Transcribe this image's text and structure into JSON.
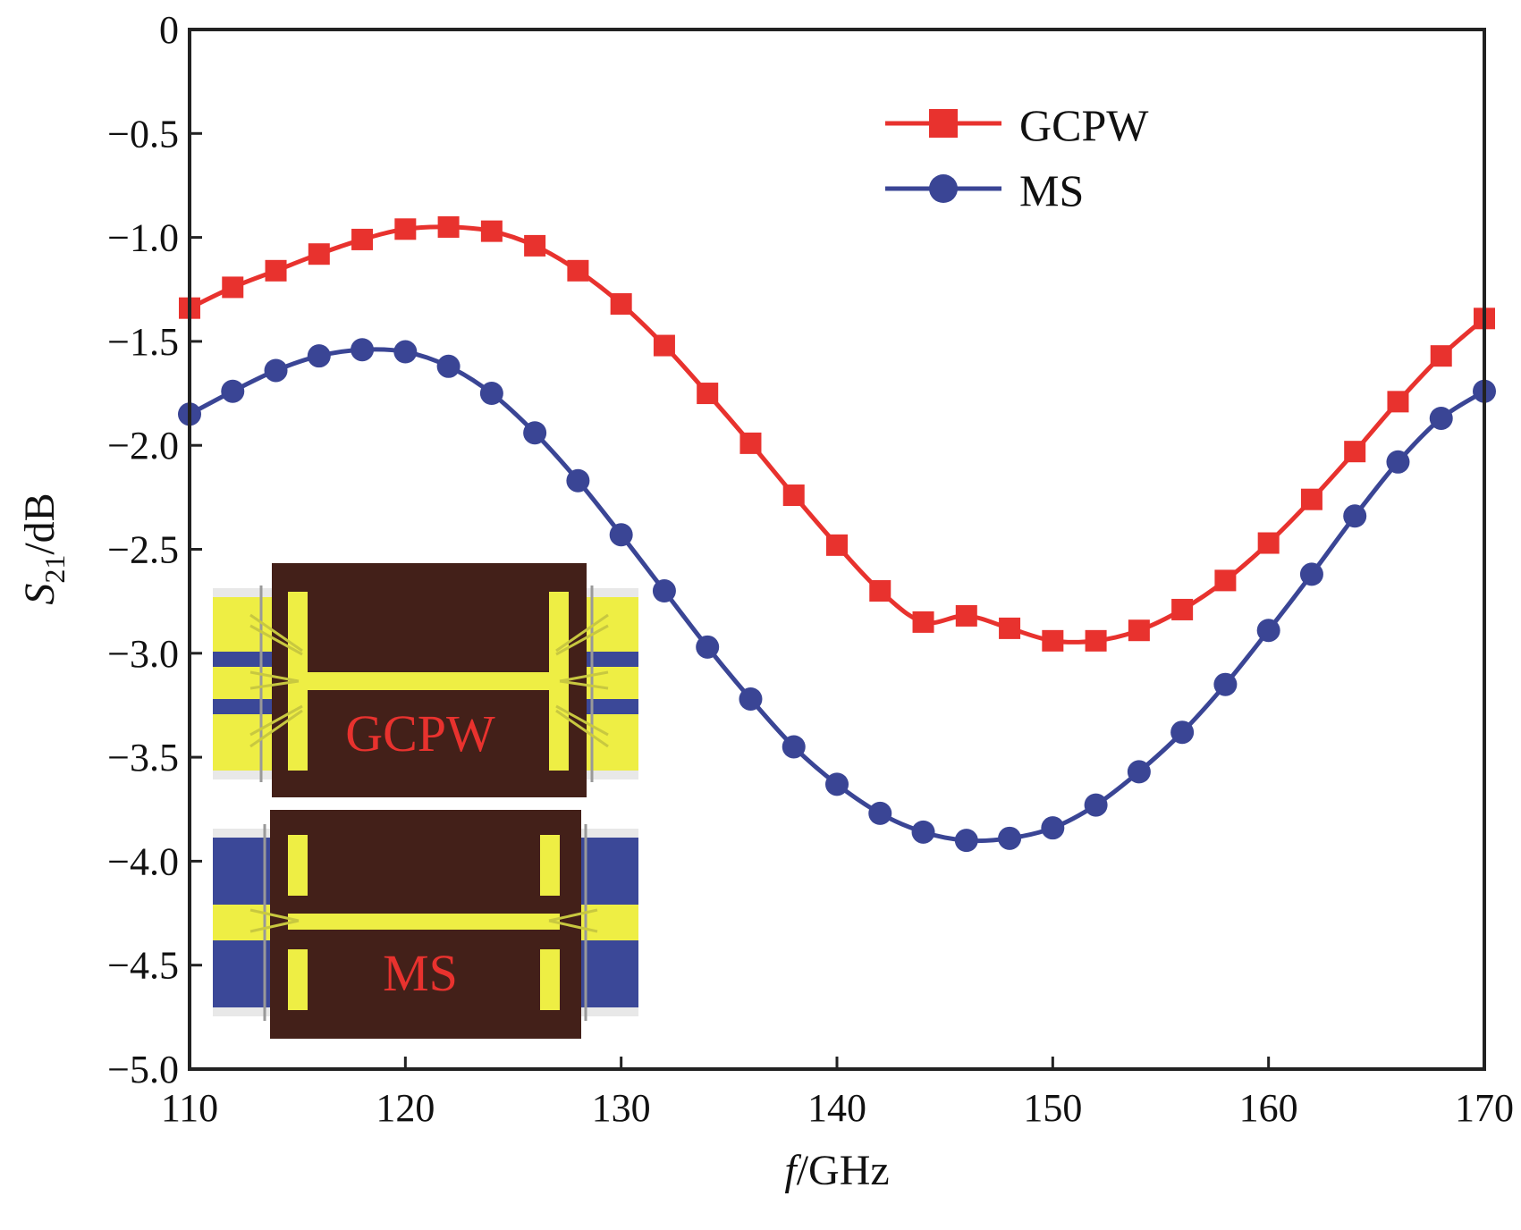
{
  "chart_data": {
    "type": "line",
    "xlabel": {
      "italic": "f",
      "rest": "/GHz"
    },
    "ylabel": {
      "italic": "S",
      "sub": "21",
      "rest": "/dB"
    },
    "xlim": [
      110,
      170
    ],
    "ylim": [
      -5.0,
      0
    ],
    "xticks": [
      "110",
      "120",
      "130",
      "140",
      "150",
      "160",
      "170"
    ],
    "yticks": [
      "0",
      "−0.5",
      "−1.0",
      "−1.5",
      "−2.0",
      "−2.5",
      "−3.0",
      "−3.5",
      "−4.0",
      "−4.5",
      "−5.0"
    ],
    "grid": false,
    "legend_position": "top-right",
    "x": [
      110,
      112,
      114,
      116,
      118,
      120,
      122,
      124,
      126,
      128,
      130,
      132,
      134,
      136,
      138,
      140,
      142,
      144,
      146,
      148,
      150,
      152,
      154,
      156,
      158,
      160,
      162,
      164,
      166,
      168,
      170
    ],
    "series": [
      {
        "name": "GCPW",
        "color": "#e8322e",
        "marker": "square",
        "values": [
          -1.34,
          -1.24,
          -1.16,
          -1.08,
          -1.01,
          -0.96,
          -0.95,
          -0.97,
          -1.04,
          -1.16,
          -1.32,
          -1.52,
          -1.75,
          -1.99,
          -2.24,
          -2.48,
          -2.7,
          -2.85,
          -2.82,
          -2.88,
          -2.94,
          -2.94,
          -2.89,
          -2.79,
          -2.65,
          -2.47,
          -2.26,
          -2.03,
          -1.79,
          -1.57,
          -1.39
        ]
      },
      {
        "name": "MS",
        "color": "#3a4595",
        "marker": "circle",
        "values": [
          -1.85,
          -1.74,
          -1.64,
          -1.57,
          -1.54,
          -1.55,
          -1.62,
          -1.75,
          -1.94,
          -2.17,
          -2.43,
          -2.7,
          -2.97,
          -3.22,
          -3.45,
          -3.63,
          -3.77,
          -3.86,
          -3.9,
          -3.89,
          -3.84,
          -3.73,
          -3.57,
          -3.38,
          -3.15,
          -2.89,
          -2.62,
          -2.34,
          -2.08,
          -1.87,
          -1.74
        ]
      }
    ],
    "inset_labels": {
      "top": "GCPW",
      "bottom": "MS"
    }
  }
}
